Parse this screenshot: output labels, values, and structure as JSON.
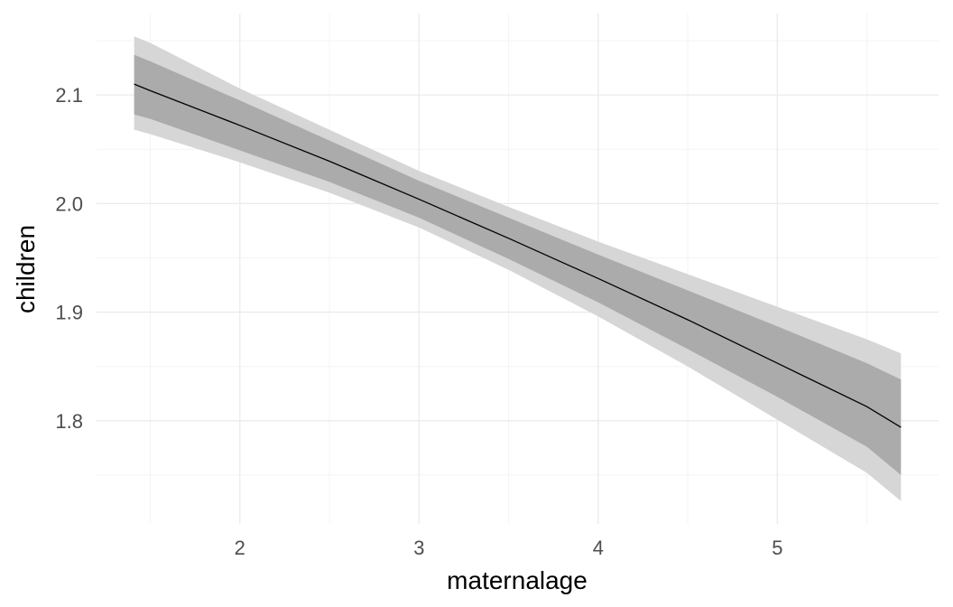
{
  "chart_data": {
    "type": "line",
    "title": "",
    "xlabel": "maternalage",
    "ylabel": "children",
    "xlim": [
      1.2,
      5.9
    ],
    "ylim": [
      1.705,
      2.175
    ],
    "x_ticks": [
      {
        "value": 2,
        "label": "2"
      },
      {
        "value": 3,
        "label": "3"
      },
      {
        "value": 4,
        "label": "4"
      },
      {
        "value": 5,
        "label": "5"
      }
    ],
    "x_minor": [
      1.5,
      2.5,
      3.5,
      4.5,
      5.5
    ],
    "y_ticks": [
      {
        "value": 1.8,
        "label": "1.8"
      },
      {
        "value": 1.9,
        "label": "1.9"
      },
      {
        "value": 2.0,
        "label": "2.0"
      },
      {
        "value": 2.1,
        "label": "2.1"
      }
    ],
    "y_minor": [
      1.75,
      1.85,
      1.95,
      2.05,
      2.15
    ],
    "grid": true,
    "x": [
      1.41,
      1.5,
      2.0,
      2.5,
      3.0,
      3.5,
      4.0,
      4.5,
      5.0,
      5.5,
      5.69
    ],
    "series": [
      {
        "values": [
          2.11,
          2.104,
          2.072,
          2.039,
          2.004,
          1.968,
          1.931,
          1.893,
          1.853,
          1.813,
          1.794
        ]
      }
    ],
    "bands": [
      {
        "level": "outer",
        "color": "#d6d6d6",
        "lower": [
          2.068,
          2.064,
          2.038,
          2.01,
          1.978,
          1.939,
          1.896,
          1.85,
          1.801,
          1.752,
          1.726
        ],
        "upper": [
          2.154,
          2.148,
          2.106,
          2.068,
          2.03,
          1.997,
          1.965,
          1.935,
          1.905,
          1.875,
          1.862
        ]
      },
      {
        "level": "inner",
        "color": "#ababab",
        "lower": [
          2.082,
          2.078,
          2.049,
          2.02,
          1.987,
          1.949,
          1.909,
          1.866,
          1.822,
          1.776,
          1.75
        ],
        "upper": [
          2.137,
          2.131,
          2.095,
          2.058,
          2.021,
          1.987,
          1.953,
          1.92,
          1.887,
          1.853,
          1.838
        ]
      }
    ],
    "line_color": "#000000",
    "grid_color": "#ebebeb"
  }
}
